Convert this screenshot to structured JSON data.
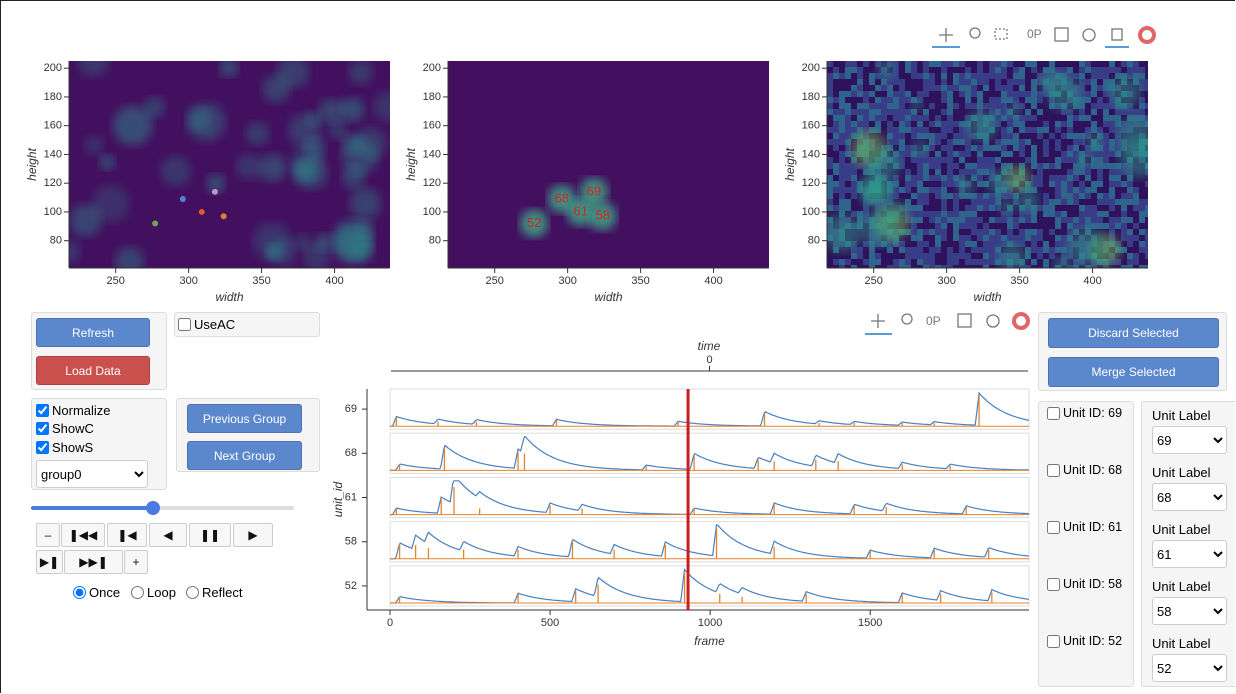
{
  "images": {
    "xlim": [
      218,
      438
    ],
    "ylim": [
      61,
      205
    ],
    "xticks": [
      250,
      300,
      350,
      400
    ],
    "yticks": [
      80,
      100,
      120,
      140,
      160,
      180,
      200
    ],
    "xlabel": "width",
    "ylabel": "height"
  },
  "units": [
    {
      "id": "69",
      "x": 318,
      "y": 114,
      "color": "#c98fc4",
      "checkbox_label": "Unit ID: 69",
      "events": [
        [
          20,
          0.3
        ],
        [
          150,
          0.15
        ],
        [
          270,
          0.15
        ],
        [
          520,
          0.2
        ],
        [
          900,
          0.15
        ],
        [
          1170,
          0.45
        ],
        [
          1340,
          0.1
        ],
        [
          1450,
          0.1
        ],
        [
          1600,
          0.1
        ],
        [
          1700,
          0.1
        ],
        [
          1840,
          1.0
        ]
      ]
    },
    {
      "id": "68",
      "x": 296,
      "y": 109,
      "color": "#4d86c9",
      "checkbox_label": "Unit ID: 68",
      "events": [
        [
          30,
          0.2
        ],
        [
          170,
          0.75
        ],
        [
          400,
          0.6
        ],
        [
          420,
          0.55
        ],
        [
          800,
          0.15
        ],
        [
          950,
          0.5
        ],
        [
          1150,
          0.35
        ],
        [
          1200,
          0.3
        ],
        [
          1330,
          0.35
        ],
        [
          1400,
          0.3
        ],
        [
          1600,
          0.2
        ],
        [
          1750,
          0.15
        ]
      ]
    },
    {
      "id": "61",
      "x": 309,
      "y": 100,
      "color": "#e05a2b",
      "checkbox_label": "Unit ID: 61",
      "events": [
        [
          20,
          0.2
        ],
        [
          160,
          0.5
        ],
        [
          200,
          0.9
        ],
        [
          280,
          0.2
        ],
        [
          500,
          0.3
        ],
        [
          600,
          0.2
        ],
        [
          950,
          0.2
        ],
        [
          1200,
          0.35
        ],
        [
          1450,
          0.3
        ],
        [
          1550,
          0.25
        ],
        [
          1800,
          0.25
        ]
      ]
    },
    {
      "id": "58",
      "x": 324,
      "y": 97,
      "color": "#d9822b",
      "checkbox_label": "Unit ID: 58",
      "events": [
        [
          30,
          0.5
        ],
        [
          80,
          0.45
        ],
        [
          120,
          0.35
        ],
        [
          230,
          0.3
        ],
        [
          400,
          0.3
        ],
        [
          570,
          0.55
        ],
        [
          700,
          0.3
        ],
        [
          860,
          0.45
        ],
        [
          1020,
          1.0
        ],
        [
          1200,
          0.4
        ],
        [
          1500,
          0.25
        ],
        [
          1700,
          0.3
        ],
        [
          1870,
          0.3
        ]
      ]
    },
    {
      "id": "52",
      "x": 277,
      "y": 92,
      "color": "#6aa84f",
      "checkbox_label": "Unit ID: 52",
      "events": [
        [
          30,
          0.2
        ],
        [
          400,
          0.3
        ],
        [
          580,
          0.4
        ],
        [
          650,
          0.6
        ],
        [
          920,
          1.0
        ],
        [
          1030,
          0.3
        ],
        [
          1100,
          0.2
        ],
        [
          1300,
          0.3
        ],
        [
          1600,
          0.3
        ],
        [
          1720,
          0.3
        ],
        [
          1880,
          0.35
        ]
      ]
    }
  ],
  "traces": {
    "xlim": [
      0,
      1996
    ],
    "xticks": [
      0,
      500,
      1000,
      1500
    ],
    "xlabel": "frame",
    "ylabel": "unit_id",
    "time_label": "time",
    "time_lim": [
      -1,
      1
    ],
    "time_ticks": [
      0
    ],
    "current_frame": 931
  },
  "controls": {
    "refresh": "Refresh",
    "load_data": "Load Data",
    "use_ac": "UseAC",
    "normalize": "Normalize",
    "show_c": "ShowC",
    "show_s": "ShowS",
    "group": "group0",
    "previous_group": "Previous Group",
    "next_group": "Next Group",
    "player_buttons": [
      "–",
      "❚◀◀",
      "❚◀",
      "◀",
      "❚❚",
      "▶",
      "▶❚",
      "▶▶❚",
      "+"
    ],
    "loop_modes": [
      "Once",
      "Loop",
      "Reflect"
    ],
    "discard": "Discard Selected",
    "merge": "Merge Selected",
    "unit_label_heading": "Unit Label"
  }
}
